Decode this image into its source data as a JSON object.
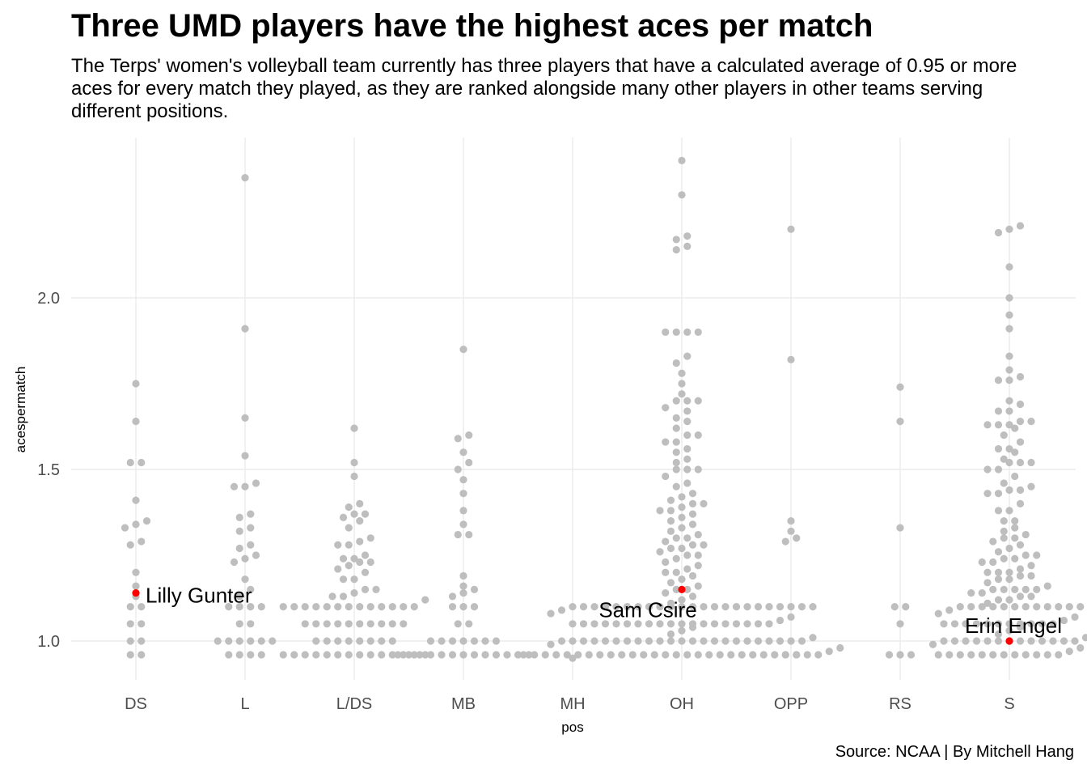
{
  "title": "Three UMD players have the highest aces per match",
  "subtitle_lines": [
    "The Terps' women's volleyball team currently has three players that have a calculated average of 0.95 or more",
    "aces for every match they played, as they are ranked alongside many other players in other teams serving",
    "different positions."
  ],
  "caption": "Source: NCAA | By Mitchell Hang",
  "colors": {
    "point": "#bebebe",
    "highlight": "#ff0000",
    "grid": "#ebebeb"
  },
  "chart_data": {
    "type": "scatter",
    "style": "beeswarm",
    "xlabel": "pos",
    "ylabel": "acespermatch",
    "categories": [
      "DS",
      "L",
      "L/DS",
      "MB",
      "MH",
      "OH",
      "OPP",
      "RS",
      "S"
    ],
    "ylim": [
      0.83,
      2.43
    ],
    "yticks": [
      1.0,
      1.5,
      2.0
    ],
    "ytick_labels": [
      "1.0",
      "1.5",
      "2.0"
    ],
    "grid": true,
    "series": [
      {
        "values": {
          "DS": [
            1.75,
            1.64,
            1.52,
            1.52,
            1.41,
            1.35,
            1.34,
            1.33,
            1.29,
            1.28,
            1.2,
            1.16,
            1.13,
            1.1,
            1.1,
            1.05,
            1.05,
            1.0,
            1.0,
            0.96,
            0.96
          ],
          "L": [
            2.35,
            1.91,
            1.65,
            1.54,
            1.46,
            1.45,
            1.45,
            1.37,
            1.36,
            1.33,
            1.32,
            1.28,
            1.27,
            1.25,
            1.24,
            1.23,
            1.18,
            1.15,
            1.13,
            1.1,
            1.1,
            1.1,
            1.1,
            1.05,
            1.05,
            1.0,
            1.0,
            1.0,
            1.0,
            1.0,
            1.0,
            0.96,
            0.96,
            0.96,
            0.96
          ],
          "L/DS": [
            1.62,
            1.52,
            1.48,
            1.4,
            1.39,
            1.37,
            1.37,
            1.36,
            1.35,
            1.33,
            1.3,
            1.29,
            1.28,
            1.28,
            1.25,
            1.24,
            1.24,
            1.23,
            1.23,
            1.22,
            1.21,
            1.2,
            1.18,
            1.18,
            1.15,
            1.15,
            1.14,
            1.13,
            1.13,
            1.12,
            1.1,
            1.1,
            1.1,
            1.1,
            1.1,
            1.1,
            1.1,
            1.1,
            1.1,
            1.1,
            1.1,
            1.1,
            1.1,
            1.05,
            1.05,
            1.05,
            1.05,
            1.05,
            1.05,
            1.05,
            1.05,
            1.05,
            1.05,
            1.0,
            1.0,
            1.0,
            1.0,
            1.0,
            1.0,
            1.0,
            1.0,
            0.96,
            0.96,
            0.96,
            0.96,
            0.96,
            0.96,
            0.96,
            0.96,
            0.96,
            0.96,
            0.96,
            0.96,
            0.96,
            0.96
          ],
          "MB": [
            1.85,
            1.6,
            1.59,
            1.55,
            1.52,
            1.5,
            1.47,
            1.43,
            1.38,
            1.34,
            1.31,
            1.31,
            1.19,
            1.16,
            1.15,
            1.14,
            1.13,
            1.1,
            1.1,
            1.1,
            1.05,
            1.05,
            1.0,
            1.0,
            1.0,
            1.0,
            1.0,
            1.0,
            1.0,
            0.96,
            0.96,
            0.96,
            0.96,
            0.96,
            0.96,
            0.96,
            0.96,
            0.96,
            0.96,
            0.96,
            0.96,
            0.96
          ],
          "MH": [
            0.95
          ],
          "OH": [
            2.4,
            2.3,
            2.18,
            2.17,
            2.15,
            2.14,
            1.9,
            1.9,
            1.9,
            1.9,
            1.83,
            1.81,
            1.78,
            1.75,
            1.72,
            1.7,
            1.7,
            1.7,
            1.68,
            1.67,
            1.65,
            1.64,
            1.62,
            1.6,
            1.6,
            1.58,
            1.58,
            1.56,
            1.55,
            1.53,
            1.52,
            1.5,
            1.5,
            1.5,
            1.48,
            1.46,
            1.45,
            1.43,
            1.42,
            1.41,
            1.4,
            1.4,
            1.39,
            1.38,
            1.38,
            1.37,
            1.36,
            1.35,
            1.34,
            1.33,
            1.32,
            1.31,
            1.3,
            1.3,
            1.29,
            1.28,
            1.28,
            1.27,
            1.27,
            1.26,
            1.25,
            1.25,
            1.24,
            1.23,
            1.22,
            1.21,
            1.2,
            1.2,
            1.19,
            1.18,
            1.17,
            1.16,
            1.15,
            1.15,
            1.14,
            1.13,
            1.12,
            1.11,
            1.1,
            1.1,
            1.1,
            1.1,
            1.1,
            1.1,
            1.1,
            1.1,
            1.1,
            1.1,
            1.1,
            1.1,
            1.1,
            1.1,
            1.1,
            1.1,
            1.1,
            1.1,
            1.1,
            1.1,
            1.1,
            1.1,
            1.1,
            1.09,
            1.08,
            1.07,
            1.06,
            1.05,
            1.05,
            1.05,
            1.05,
            1.05,
            1.05,
            1.05,
            1.05,
            1.05,
            1.05,
            1.05,
            1.05,
            1.05,
            1.05,
            1.05,
            1.05,
            1.05,
            1.05,
            1.05,
            1.04,
            1.03,
            1.02,
            1.01,
            1.0,
            1.0,
            1.0,
            1.0,
            1.0,
            1.0,
            1.0,
            1.0,
            1.0,
            1.0,
            1.0,
            1.0,
            1.0,
            1.0,
            1.0,
            1.0,
            1.0,
            1.0,
            1.0,
            1.0,
            1.0,
            1.0,
            1.0,
            0.99,
            0.98,
            0.97,
            0.96,
            0.96,
            0.96,
            0.96,
            0.96,
            0.96,
            0.96,
            0.96,
            0.96,
            0.96,
            0.96,
            0.96,
            0.96,
            0.96,
            0.96,
            0.96,
            0.96,
            0.96,
            0.96,
            0.96,
            0.96,
            0.96,
            0.96,
            0.96,
            0.96,
            0.96,
            0.96,
            0.96
          ],
          "OPP": [
            2.2,
            1.82,
            1.35,
            1.32,
            1.3,
            1.29,
            0.96,
            0.96
          ],
          "RS": [
            1.74,
            1.64,
            1.33,
            1.1,
            1.1,
            1.05,
            0.96,
            0.96,
            0.96
          ],
          "S": [
            2.21,
            2.2,
            2.19,
            2.09,
            2.0,
            1.95,
            1.91,
            1.83,
            1.79,
            1.77,
            1.76,
            1.76,
            1.7,
            1.69,
            1.67,
            1.67,
            1.64,
            1.64,
            1.63,
            1.63,
            1.63,
            1.62,
            1.6,
            1.58,
            1.56,
            1.56,
            1.55,
            1.53,
            1.52,
            1.52,
            1.52,
            1.5,
            1.5,
            1.48,
            1.46,
            1.45,
            1.44,
            1.44,
            1.43,
            1.43,
            1.4,
            1.38,
            1.38,
            1.35,
            1.35,
            1.33,
            1.32,
            1.31,
            1.3,
            1.3,
            1.29,
            1.28,
            1.27,
            1.26,
            1.25,
            1.25,
            1.24,
            1.24,
            1.23,
            1.23,
            1.22,
            1.21,
            1.2,
            1.2,
            1.2,
            1.19,
            1.19,
            1.18,
            1.18,
            1.17,
            1.16,
            1.15,
            1.15,
            1.15,
            1.15,
            1.15,
            1.14,
            1.14,
            1.13,
            1.13,
            1.12,
            1.12,
            1.11,
            1.1,
            1.1,
            1.1,
            1.1,
            1.1,
            1.1,
            1.1,
            1.1,
            1.1,
            1.1,
            1.1,
            1.1,
            1.09,
            1.08,
            1.07,
            1.06,
            1.05,
            1.05,
            1.05,
            1.05,
            1.05,
            1.05,
            1.05,
            1.05,
            1.05,
            1.05,
            1.05,
            1.04,
            1.03,
            1.02,
            1.01,
            1.0,
            1.0,
            1.0,
            1.0,
            1.0,
            1.0,
            1.0,
            1.0,
            1.0,
            1.0,
            1.0,
            1.0,
            1.0,
            0.99,
            0.98,
            0.97,
            0.96,
            0.96,
            0.96,
            0.96,
            0.96,
            0.96,
            0.96,
            0.96,
            0.96,
            0.96,
            0.96,
            0.96
          ]
        }
      }
    ],
    "highlighted": [
      {
        "label": "Lilly Gunter",
        "pos": "DS",
        "value": 1.14
      },
      {
        "label": "Sam Csire",
        "pos": "OH",
        "value": 1.15
      },
      {
        "label": "Erin Engel",
        "pos": "S",
        "value": 1.0
      }
    ]
  }
}
